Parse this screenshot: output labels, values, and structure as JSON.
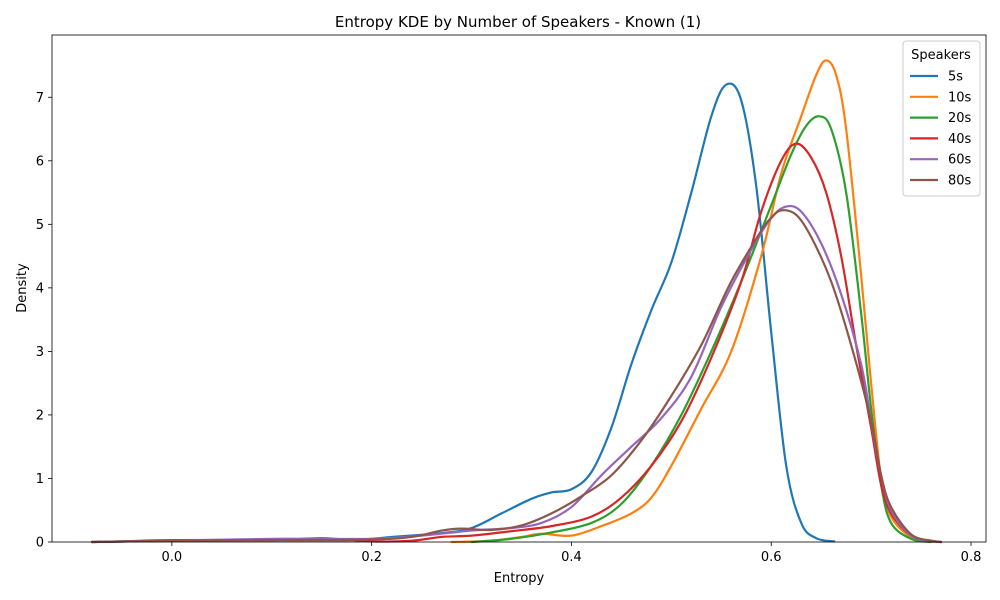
{
  "chart_data": {
    "type": "line",
    "title": "Entropy KDE by Number of Speakers - Known (1)",
    "xlabel": "Entropy",
    "ylabel": "Density",
    "xlim": [
      -0.12,
      0.815
    ],
    "ylim": [
      0,
      7.98
    ],
    "xticks": [
      0.0,
      0.2,
      0.4,
      0.6,
      0.8
    ],
    "xtick_labels": [
      "0.0",
      "0.2",
      "0.4",
      "0.6",
      "0.8"
    ],
    "yticks": [
      0,
      1,
      2,
      3,
      4,
      5,
      6,
      7
    ],
    "ytick_labels": [
      "0",
      "1",
      "2",
      "3",
      "4",
      "5",
      "6",
      "7"
    ],
    "grid": false,
    "legend": {
      "title": "Speakers",
      "placement": "top-right"
    },
    "series": [
      {
        "name": "5s",
        "color": "#1f77b4",
        "points": [
          [
            -0.08,
            0
          ],
          [
            -0.05,
            0.01
          ],
          [
            0.0,
            0.03
          ],
          [
            0.1,
            0.03
          ],
          [
            0.18,
            0.03
          ],
          [
            0.22,
            0.08
          ],
          [
            0.27,
            0.14
          ],
          [
            0.3,
            0.22
          ],
          [
            0.33,
            0.45
          ],
          [
            0.36,
            0.68
          ],
          [
            0.38,
            0.78
          ],
          [
            0.4,
            0.83
          ],
          [
            0.42,
            1.1
          ],
          [
            0.44,
            1.8
          ],
          [
            0.46,
            2.8
          ],
          [
            0.48,
            3.65
          ],
          [
            0.5,
            4.4
          ],
          [
            0.52,
            5.5
          ],
          [
            0.54,
            6.7
          ],
          [
            0.555,
            7.2
          ],
          [
            0.57,
            6.95
          ],
          [
            0.585,
            5.6
          ],
          [
            0.6,
            3.3
          ],
          [
            0.615,
            1.2
          ],
          [
            0.63,
            0.3
          ],
          [
            0.645,
            0.06
          ],
          [
            0.663,
            0.01
          ]
        ]
      },
      {
        "name": "10s",
        "color": "#ff7f0e",
        "points": [
          [
            0.28,
            0
          ],
          [
            0.32,
            0.02
          ],
          [
            0.35,
            0.08
          ],
          [
            0.37,
            0.13
          ],
          [
            0.4,
            0.1
          ],
          [
            0.43,
            0.25
          ],
          [
            0.46,
            0.45
          ],
          [
            0.48,
            0.7
          ],
          [
            0.5,
            1.2
          ],
          [
            0.53,
            2.1
          ],
          [
            0.56,
            3.0
          ],
          [
            0.59,
            4.5
          ],
          [
            0.61,
            5.8
          ],
          [
            0.63,
            6.7
          ],
          [
            0.645,
            7.35
          ],
          [
            0.655,
            7.58
          ],
          [
            0.665,
            7.35
          ],
          [
            0.675,
            6.5
          ],
          [
            0.69,
            4.2
          ],
          [
            0.7,
            2.5
          ],
          [
            0.71,
            1.0
          ],
          [
            0.72,
            0.4
          ],
          [
            0.74,
            0.08
          ],
          [
            0.76,
            0.01
          ],
          [
            0.77,
            0
          ]
        ]
      },
      {
        "name": "20s",
        "color": "#2ca02c",
        "points": [
          [
            0.3,
            0
          ],
          [
            0.34,
            0.05
          ],
          [
            0.38,
            0.15
          ],
          [
            0.42,
            0.3
          ],
          [
            0.45,
            0.6
          ],
          [
            0.48,
            1.2
          ],
          [
            0.51,
            2.0
          ],
          [
            0.54,
            3.0
          ],
          [
            0.57,
            4.1
          ],
          [
            0.6,
            5.3
          ],
          [
            0.62,
            6.1
          ],
          [
            0.635,
            6.55
          ],
          [
            0.648,
            6.7
          ],
          [
            0.66,
            6.5
          ],
          [
            0.675,
            5.5
          ],
          [
            0.69,
            3.6
          ],
          [
            0.7,
            2.1
          ],
          [
            0.71,
            0.9
          ],
          [
            0.72,
            0.3
          ],
          [
            0.74,
            0.05
          ],
          [
            0.76,
            0
          ]
        ]
      },
      {
        "name": "40s",
        "color": "#d62728",
        "points": [
          [
            -0.08,
            0
          ],
          [
            0.0,
            0.02
          ],
          [
            0.1,
            0.03
          ],
          [
            0.15,
            0.06
          ],
          [
            0.2,
            0.01
          ],
          [
            0.24,
            0.02
          ],
          [
            0.27,
            0.08
          ],
          [
            0.3,
            0.1
          ],
          [
            0.34,
            0.17
          ],
          [
            0.38,
            0.25
          ],
          [
            0.42,
            0.4
          ],
          [
            0.45,
            0.7
          ],
          [
            0.48,
            1.2
          ],
          [
            0.51,
            1.9
          ],
          [
            0.54,
            2.9
          ],
          [
            0.57,
            4.1
          ],
          [
            0.59,
            5.2
          ],
          [
            0.61,
            6.0
          ],
          [
            0.625,
            6.27
          ],
          [
            0.64,
            6.05
          ],
          [
            0.655,
            5.5
          ],
          [
            0.67,
            4.5
          ],
          [
            0.685,
            3.1
          ],
          [
            0.7,
            1.8
          ],
          [
            0.71,
            0.9
          ],
          [
            0.72,
            0.45
          ],
          [
            0.74,
            0.1
          ],
          [
            0.76,
            0.02
          ],
          [
            0.77,
            0
          ]
        ]
      },
      {
        "name": "60s",
        "color": "#9467bd",
        "points": [
          [
            -0.08,
            0
          ],
          [
            0.0,
            0.02
          ],
          [
            0.1,
            0.05
          ],
          [
            0.2,
            0.05
          ],
          [
            0.25,
            0.1
          ],
          [
            0.3,
            0.18
          ],
          [
            0.34,
            0.22
          ],
          [
            0.37,
            0.3
          ],
          [
            0.4,
            0.55
          ],
          [
            0.43,
            1.05
          ],
          [
            0.46,
            1.5
          ],
          [
            0.49,
            1.95
          ],
          [
            0.52,
            2.6
          ],
          [
            0.55,
            3.7
          ],
          [
            0.58,
            4.6
          ],
          [
            0.6,
            5.1
          ],
          [
            0.615,
            5.28
          ],
          [
            0.63,
            5.2
          ],
          [
            0.65,
            4.7
          ],
          [
            0.67,
            3.9
          ],
          [
            0.69,
            2.8
          ],
          [
            0.7,
            1.9
          ],
          [
            0.71,
            1.05
          ],
          [
            0.72,
            0.5
          ],
          [
            0.74,
            0.1
          ],
          [
            0.76,
            0.01
          ],
          [
            0.77,
            0
          ]
        ]
      },
      {
        "name": "80s",
        "color": "#8c564b",
        "points": [
          [
            -0.08,
            0
          ],
          [
            0.0,
            0.02
          ],
          [
            0.1,
            0.03
          ],
          [
            0.2,
            0.04
          ],
          [
            0.24,
            0.08
          ],
          [
            0.27,
            0.18
          ],
          [
            0.29,
            0.21
          ],
          [
            0.32,
            0.19
          ],
          [
            0.35,
            0.26
          ],
          [
            0.38,
            0.45
          ],
          [
            0.41,
            0.72
          ],
          [
            0.44,
            1.05
          ],
          [
            0.47,
            1.6
          ],
          [
            0.5,
            2.3
          ],
          [
            0.53,
            3.1
          ],
          [
            0.56,
            4.1
          ],
          [
            0.59,
            4.9
          ],
          [
            0.6,
            5.1
          ],
          [
            0.61,
            5.22
          ],
          [
            0.625,
            5.15
          ],
          [
            0.64,
            4.8
          ],
          [
            0.66,
            4.1
          ],
          [
            0.68,
            3.1
          ],
          [
            0.7,
            1.9
          ],
          [
            0.71,
            1.05
          ],
          [
            0.72,
            0.55
          ],
          [
            0.74,
            0.12
          ],
          [
            0.76,
            0.02
          ],
          [
            0.77,
            0
          ]
        ]
      }
    ]
  }
}
